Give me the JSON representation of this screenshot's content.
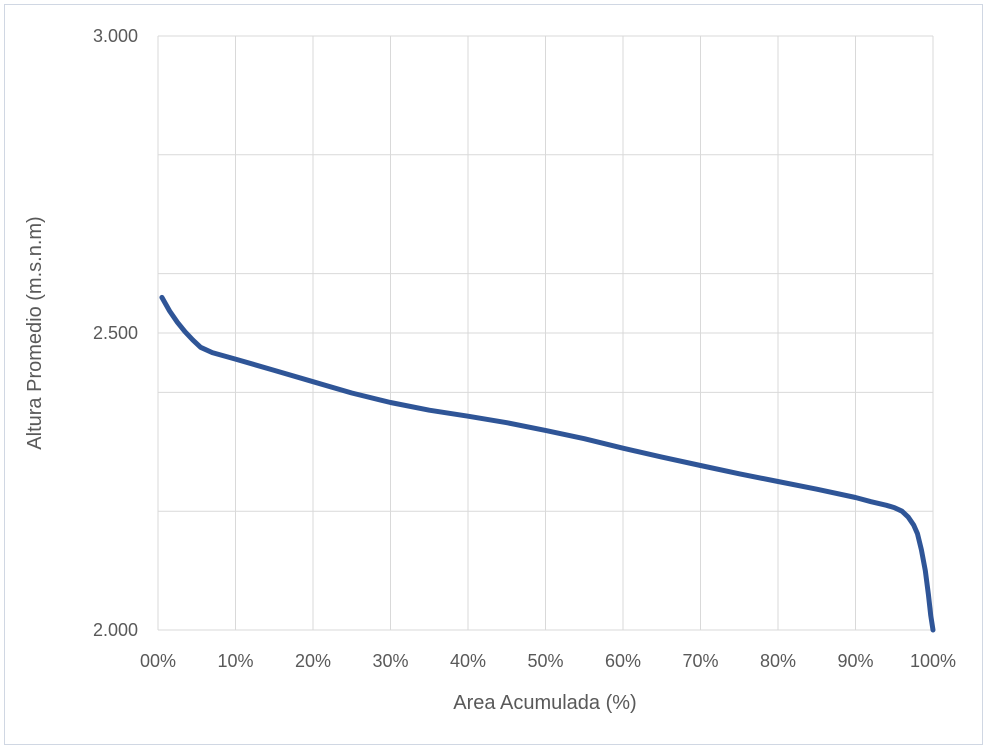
{
  "chart_data": {
    "type": "line",
    "title": "",
    "xlabel": "Area Acumulada (%)",
    "ylabel": "Altura Promedio (m.s.n.m)",
    "xlim": [
      0,
      100
    ],
    "ylim": [
      2000,
      3000
    ],
    "grid": true,
    "x_ticks": [
      "00%",
      "10%",
      "20%",
      "30%",
      "40%",
      "50%",
      "60%",
      "70%",
      "80%",
      "90%",
      "100%"
    ],
    "y_ticks": [
      "2.000",
      "2.500",
      "3.000"
    ],
    "y_gridlines": [
      2000,
      2200,
      2400,
      2500,
      2600,
      2800,
      3000
    ],
    "series": [
      {
        "color": "#2f5597",
        "x": [
          0.5,
          1.5,
          2.5,
          3.5,
          4.5,
          5.5,
          7,
          10,
          15,
          20,
          25,
          30,
          35,
          40,
          45,
          50,
          55,
          60,
          65,
          70,
          75,
          80,
          85,
          90,
          92,
          94,
          95,
          96,
          96.8,
          97.5,
          98,
          98.5,
          99,
          99.4,
          99.7,
          100
        ],
        "y": [
          2560,
          2537,
          2518,
          2502,
          2488,
          2476,
          2467,
          2456,
          2437,
          2418,
          2399,
          2383,
          2370,
          2360,
          2349,
          2336,
          2322,
          2306,
          2291,
          2277,
          2263,
          2250,
          2237,
          2223,
          2216,
          2210,
          2206,
          2200,
          2190,
          2177,
          2162,
          2135,
          2100,
          2060,
          2025,
          2000
        ]
      }
    ]
  }
}
